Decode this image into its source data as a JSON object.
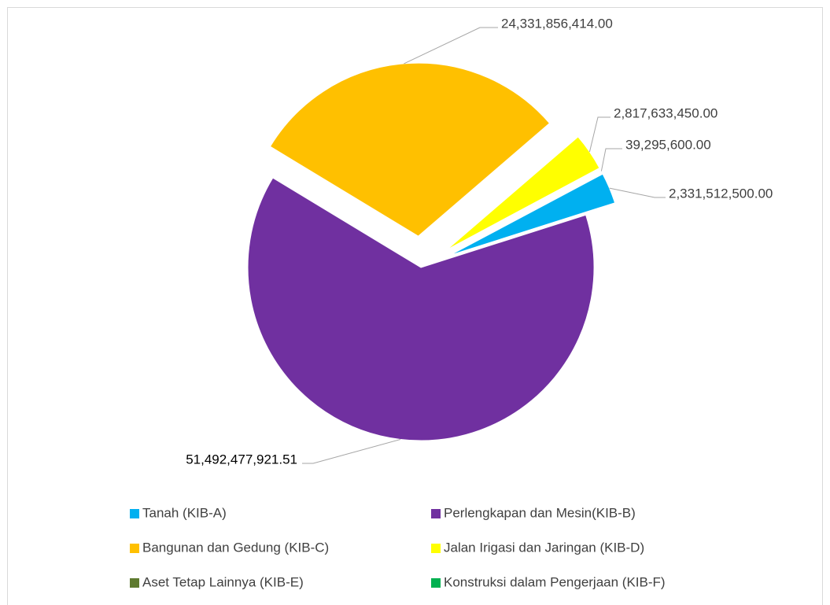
{
  "chart_data": {
    "type": "pie",
    "categories": [
      "Tanah (KIB-A)",
      "Perlengkapan dan Mesin(KIB-B)",
      "Bangunan dan Gedung (KIB-C)",
      "Jalan Irigasi dan Jaringan (KIB-D)",
      "Aset Tetap Lainnya (KIB-E)",
      "Konstruksi dalam Pengerjaan (KIB-F)"
    ],
    "values": [
      2331512500,
      51492477921.51,
      24331856414,
      2817633450,
      39295600,
      0
    ],
    "value_labels": [
      "2,331,512,500.00",
      "51,492,477,921.51",
      "24,331,856,414.00",
      "2,817,633,450.00",
      "39,295,600.00",
      null
    ],
    "colors": [
      "#00B0F0",
      "#7030A0",
      "#FFC000",
      "#FFFF00",
      "#5E7A2F",
      "#00B050"
    ],
    "legend": "bottom"
  }
}
